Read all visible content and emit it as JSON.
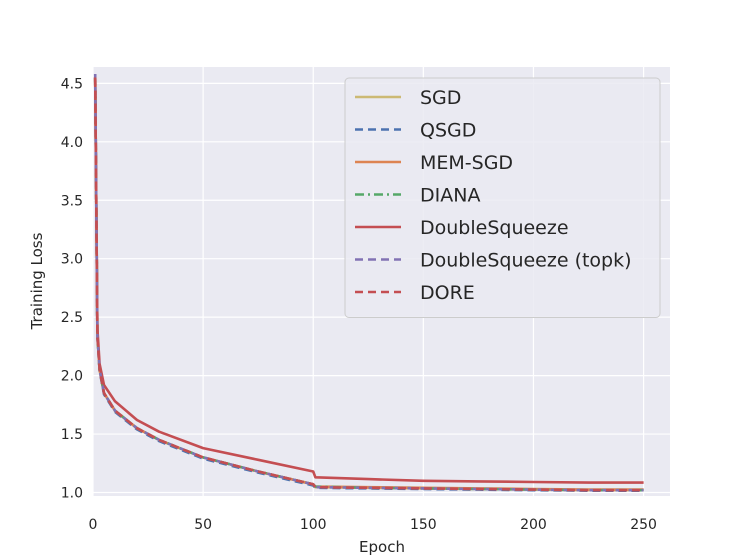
{
  "chart_data": {
    "type": "line",
    "xlabel": "Epoch",
    "ylabel": "Training Loss",
    "xlim": [
      0,
      262
    ],
    "ylim": [
      0.97,
      4.64
    ],
    "xticks": [
      0,
      50,
      100,
      150,
      200,
      250
    ],
    "yticks": [
      1.0,
      1.5,
      2.0,
      2.5,
      3.0,
      3.5,
      4.0,
      4.5
    ],
    "ytick_labels": [
      "1.0",
      "1.5",
      "2.0",
      "2.5",
      "3.0",
      "3.5",
      "4.0",
      "4.5"
    ],
    "grid": true,
    "legend_position": "top-right",
    "background": "#EAEAF2",
    "series": [
      {
        "name": "SGD",
        "color": "#CCB974",
        "dash": "solid",
        "x": [
          1,
          2,
          3,
          5,
          10,
          20,
          30,
          50,
          75,
          100,
          101,
          125,
          150,
          175,
          200,
          225,
          250
        ],
        "y": [
          4.55,
          2.35,
          2.05,
          1.85,
          1.7,
          1.55,
          1.45,
          1.3,
          1.18,
          1.07,
          1.045,
          1.04,
          1.035,
          1.03,
          1.025,
          1.02,
          1.02
        ]
      },
      {
        "name": "QSGD",
        "color": "#4C72B0",
        "dash": "dashed",
        "x": [
          1,
          2,
          3,
          5,
          10,
          20,
          30,
          50,
          75,
          100,
          101,
          125,
          150,
          175,
          200,
          225,
          250
        ],
        "y": [
          4.55,
          2.33,
          2.04,
          1.84,
          1.69,
          1.54,
          1.44,
          1.29,
          1.17,
          1.06,
          1.04,
          1.035,
          1.03,
          1.025,
          1.02,
          1.015,
          1.015
        ]
      },
      {
        "name": "MEM-SGD",
        "color": "#DD8452",
        "dash": "solid",
        "x": [
          1,
          2,
          3,
          5,
          10,
          20,
          30,
          50,
          75,
          100,
          101,
          125,
          150,
          175,
          200,
          225,
          250
        ],
        "y": [
          4.55,
          2.34,
          2.05,
          1.85,
          1.7,
          1.55,
          1.45,
          1.3,
          1.18,
          1.07,
          1.05,
          1.045,
          1.04,
          1.035,
          1.03,
          1.025,
          1.025
        ]
      },
      {
        "name": "DIANA",
        "color": "#55A868",
        "dash": "dashdot",
        "x": [
          1,
          2,
          3,
          5,
          10,
          20,
          30,
          50,
          75,
          100,
          101,
          125,
          150,
          175,
          200,
          225,
          250
        ],
        "y": [
          4.55,
          2.34,
          2.05,
          1.85,
          1.7,
          1.55,
          1.45,
          1.3,
          1.18,
          1.07,
          1.05,
          1.04,
          1.035,
          1.03,
          1.025,
          1.02,
          1.02
        ]
      },
      {
        "name": "DoubleSqueeze",
        "color": "#C44E52",
        "dash": "solid",
        "x": [
          1,
          2,
          3,
          5,
          10,
          20,
          30,
          50,
          75,
          100,
          101,
          125,
          150,
          175,
          200,
          225,
          250
        ],
        "y": [
          4.55,
          2.4,
          2.1,
          1.92,
          1.78,
          1.62,
          1.52,
          1.38,
          1.28,
          1.18,
          1.13,
          1.115,
          1.1,
          1.095,
          1.09,
          1.085,
          1.085
        ]
      },
      {
        "name": "DoubleSqueeze (topk)",
        "color": "#8172B3",
        "dash": "dashed",
        "x": [
          1,
          2,
          3,
          5,
          10,
          20,
          30,
          50,
          75,
          100,
          101,
          125,
          150,
          175,
          200,
          225,
          250
        ],
        "y": [
          4.58,
          2.34,
          2.05,
          1.85,
          1.7,
          1.55,
          1.45,
          1.3,
          1.18,
          1.07,
          1.045,
          1.04,
          1.035,
          1.03,
          1.025,
          1.02,
          1.02
        ]
      },
      {
        "name": "DORE",
        "color": "#C44E52",
        "dash": "dashed",
        "x": [
          1,
          2,
          3,
          5,
          10,
          20,
          30,
          50,
          75,
          100,
          101,
          125,
          150,
          175,
          200,
          225,
          250
        ],
        "y": [
          4.55,
          2.34,
          2.05,
          1.85,
          1.7,
          1.55,
          1.45,
          1.3,
          1.18,
          1.07,
          1.045,
          1.04,
          1.035,
          1.03,
          1.025,
          1.02,
          1.02
        ]
      }
    ]
  }
}
